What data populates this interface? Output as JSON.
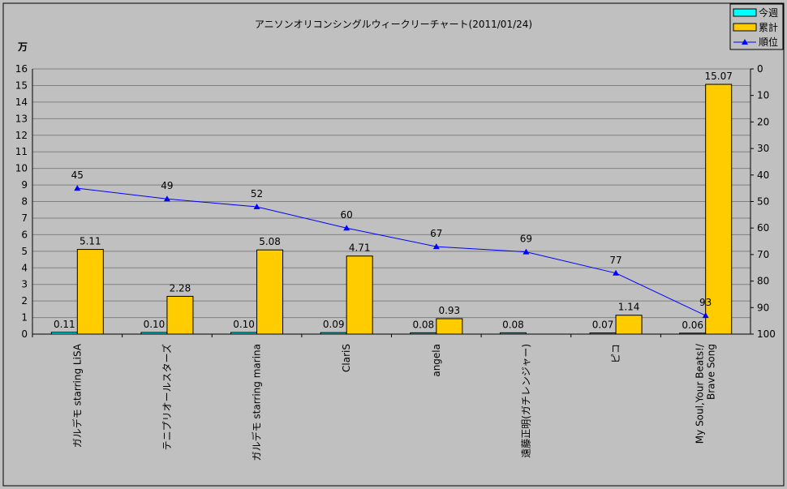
{
  "chart_data": {
    "type": "bar",
    "title": "アニソンオリコンシングルウィークリーチャート(2011/01/24)",
    "y_unit_label": "万",
    "categories": [
      "ガルデモ starring LiSA",
      "テニプリオールスターズ",
      "ガルデモ starring marina",
      "ClariS",
      "angela",
      "遠藤正明(ガチレンジャー)",
      "ピコ",
      [
        "My Soul,Your Beats!/",
        "Brave Song"
      ]
    ],
    "series": [
      {
        "name": "今週",
        "type": "bar",
        "color": "#00ffff",
        "values": [
          0.11,
          0.1,
          0.1,
          0.09,
          0.08,
          0.08,
          0.07,
          0.06
        ]
      },
      {
        "name": "累計",
        "type": "bar",
        "color": "#ffcc00",
        "values": [
          5.11,
          2.28,
          5.08,
          4.71,
          0.93,
          null,
          1.14,
          15.07
        ]
      },
      {
        "name": "順位",
        "type": "line",
        "axis": "right",
        "color": "#0000ff",
        "marker": "triangle",
        "values": [
          45,
          49,
          52,
          60,
          67,
          69,
          77,
          93
        ]
      }
    ],
    "ylim": [
      0,
      16
    ],
    "yticks": [
      0,
      1,
      2,
      3,
      4,
      5,
      6,
      7,
      8,
      9,
      10,
      11,
      12,
      13,
      14,
      15,
      16
    ],
    "y2lim": [
      0,
      100
    ],
    "y2_reversed": true,
    "y2ticks": [
      0,
      10,
      20,
      30,
      40,
      50,
      60,
      70,
      80,
      90,
      100
    ],
    "grid": true,
    "legend": "top-right"
  }
}
